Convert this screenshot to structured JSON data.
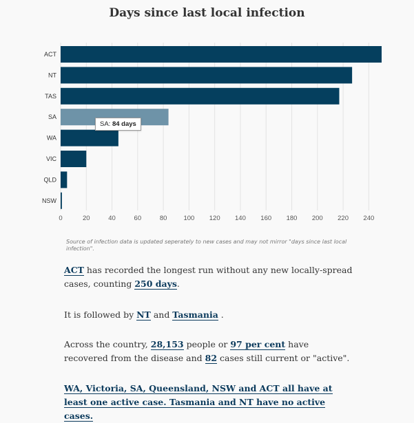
{
  "chart_data": {
    "type": "bar",
    "orientation": "horizontal",
    "title": "Days since last local infection",
    "categories": [
      "ACT",
      "NT",
      "TAS",
      "SA",
      "WA",
      "VIC",
      "QLD",
      "NSW"
    ],
    "values": [
      250,
      227,
      217,
      84,
      45,
      20,
      5,
      1
    ],
    "xlim": [
      0,
      250
    ],
    "xticks": [
      0,
      20,
      40,
      60,
      80,
      100,
      120,
      140,
      160,
      180,
      200,
      220,
      240
    ],
    "grid": true,
    "highlighted_category": "SA",
    "colors": {
      "bar": "#053f5e",
      "bar_highlight": "#6e93a8",
      "grid": "#e3e3e3"
    }
  },
  "tooltip": {
    "label": "SA:",
    "value": "84 days"
  },
  "source_note": "Source of infection data is updated seperately to new cases and may not mirror \"days since last local infection\".",
  "story": {
    "p1": {
      "link_state": "ACT",
      "text_a": " has recorded the longest run without any new locally-spread cases, counting ",
      "link_days": "250 days",
      "text_b": "."
    },
    "p2": {
      "text_a": "It is followed by ",
      "link_nt": "NT",
      "text_b": " and ",
      "link_tas": "Tasmania",
      "text_c": " ."
    },
    "p3": {
      "text_a": "Across the country, ",
      "link_recovered": "28,153",
      "text_b": " people or ",
      "link_percent": "97 per cent",
      "text_c": " have recovered from the disease and ",
      "link_active": "82",
      "text_d": " cases still current or \"active\"."
    },
    "p4": {
      "link_text": "WA, Victoria, SA, Queensland, NSW and ACT all have at least one active case. Tasmania and NT have no active cases."
    }
  }
}
